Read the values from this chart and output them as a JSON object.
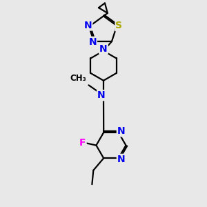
{
  "bg_color": "#e8e8e8",
  "bond_color": "#000000",
  "bond_width": 1.6,
  "atom_colors": {
    "N": "#0000ee",
    "S": "#aaaa00",
    "F": "#ff00ff",
    "C": "#000000"
  },
  "font_size_atom": 10,
  "fig_width": 3.0,
  "fig_height": 3.0,
  "dpi": 100
}
